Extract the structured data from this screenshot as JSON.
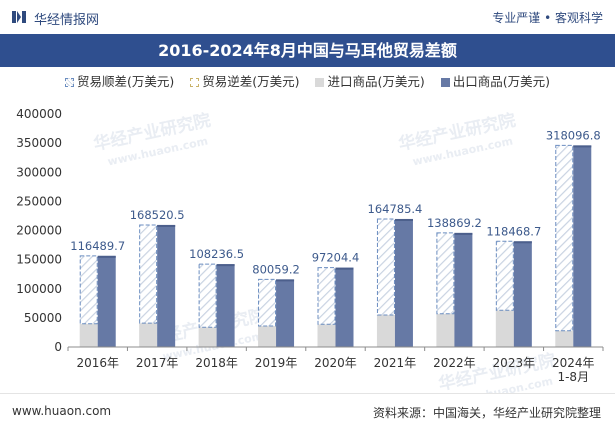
{
  "header": {
    "brand": "华经情报网",
    "slogan": "专业严谨 • 客观科学"
  },
  "chart_data": {
    "type": "bar",
    "title": "2016-2024年8月中国与马耳他贸易差额",
    "categories": [
      "2016年",
      "2017年",
      "2018年",
      "2019年",
      "2020年",
      "2021年",
      "2022年",
      "2023年",
      "2024年\n1-8月"
    ],
    "series": [
      {
        "name": "贸易顺差(万美元)",
        "values": [
          116489.7,
          168520.5,
          108236.5,
          80059.2,
          97204.4,
          164785.4,
          138869.2,
          118468.7,
          318096.8
        ]
      },
      {
        "name": "贸易逆差(万美元)",
        "values": [
          0,
          0,
          0,
          0,
          0,
          0,
          0,
          0,
          0
        ]
      },
      {
        "name": "进口商品(万美元)",
        "values": [
          40000,
          41000,
          34000,
          36000,
          39000,
          55000,
          57000,
          63000,
          28000
        ]
      },
      {
        "name": "出口商品(万美元)",
        "values": [
          156489.7,
          209520.5,
          142236.5,
          116059.2,
          136204.4,
          219785.4,
          195869.2,
          181468.7,
          346096.8
        ]
      }
    ],
    "data_labels": [
      "116489.7",
      "168520.5",
      "108236.5",
      "80059.2",
      "97204.4",
      "164785.4",
      "138869.2",
      "118468.7",
      "318096.8"
    ],
    "xlabel": "",
    "ylabel": "",
    "ylim": [
      0,
      400000
    ],
    "yticks": [
      0,
      50000,
      100000,
      150000,
      200000,
      250000,
      300000,
      350000,
      400000
    ],
    "grid": false,
    "legend": "top-center"
  },
  "colors": {
    "title_bg": "#2f4f8f",
    "surplus_fill": "#c9d3e2",
    "surplus_border": "#6b8dc0",
    "deficit_border": "#c9b36a",
    "import": "#d9d9d9",
    "export": "#6679a5",
    "value_label": "#3d5a8c"
  },
  "watermark": {
    "cn": "华经产业研究院",
    "en": "www.huaon.com"
  },
  "footer": {
    "site": "www.huaon.com",
    "source": "资料来源：中国海关，华经产业研究院整理"
  }
}
